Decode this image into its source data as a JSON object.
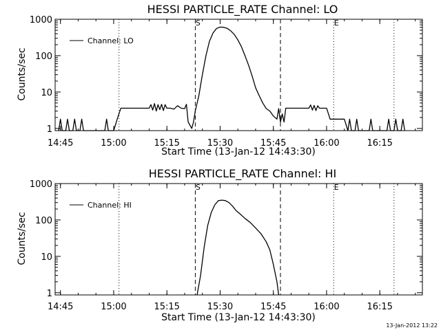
{
  "footer": {
    "timestamp": "13-Jan-2012 13:22"
  },
  "chart_data": [
    {
      "type": "line",
      "title": "HESSI PARTICLE_RATE Channel: LO",
      "xlabel": "Start Time (13-Jan-12 14:43:30)",
      "ylabel": "Counts/sec",
      "xlim": [
        "14:43:30",
        "16:27:00"
      ],
      "ylim": [
        0.87,
        1000
      ],
      "yscale": "log",
      "x_ticks": [
        "14:45",
        "15:00",
        "15:15",
        "15:30",
        "15:45",
        "16:00",
        "16:15"
      ],
      "y_ticks": [
        "1",
        "10",
        "100",
        "1000"
      ],
      "legend": {
        "position": "top-left"
      },
      "markers": [
        {
          "label": "",
          "time": "14:43:30",
          "style": "dotted"
        },
        {
          "label": "S",
          "time": "15:23:00",
          "style": "dashed"
        },
        {
          "label": "",
          "time": "15:01:30",
          "style": "dotted"
        },
        {
          "label": "",
          "time": "15:47:00",
          "style": "dashed"
        },
        {
          "label": "E",
          "time": "16:02:00",
          "style": "dotted"
        },
        {
          "label": "",
          "time": "16:19:00",
          "style": "dotted"
        }
      ],
      "series": [
        {
          "name": "Channel: LO",
          "x": [
            "14:44:30",
            "14:45:00",
            "14:45:30",
            "14:46:30",
            "14:47:00",
            "14:47:30",
            "14:48:30",
            "14:49:00",
            "14:49:30",
            "14:50:30",
            "14:51:00",
            "14:51:30",
            "14:52:00",
            "14:57:30",
            "14:58:00",
            "14:58:30",
            "15:00:00",
            "15:01:00",
            "15:02:00",
            "15:10:00",
            "15:10:30",
            "15:11:00",
            "15:11:30",
            "15:12:00",
            "15:12:30",
            "15:13:00",
            "15:13:30",
            "15:14:00",
            "15:14:30",
            "15:15:00",
            "15:15:30",
            "15:16:00",
            "15:17:00",
            "15:18:00",
            "15:19:00",
            "15:20:00",
            "15:20:30",
            "15:21:00",
            "15:22:00",
            "15:22:30",
            "15:23:00",
            "15:24:00",
            "15:25:00",
            "15:26:00",
            "15:27:00",
            "15:28:00",
            "15:29:00",
            "15:30:00",
            "15:31:00",
            "15:32:00",
            "15:33:00",
            "15:34:00",
            "15:35:00",
            "15:36:00",
            "15:37:00",
            "15:38:00",
            "15:39:00",
            "15:40:00",
            "15:41:00",
            "15:42:00",
            "15:43:00",
            "15:44:00",
            "15:45:00",
            "15:46:00",
            "15:46:30",
            "15:47:00",
            "15:47:30",
            "15:48:00",
            "15:48:30",
            "15:49:00",
            "15:50:00",
            "15:55:00",
            "15:55:30",
            "15:56:00",
            "15:56:30",
            "15:57:00",
            "15:57:30",
            "15:58:00",
            "15:59:00",
            "16:00:00",
            "16:01:00",
            "16:02:00",
            "16:03:00",
            "16:05:00",
            "16:06:00",
            "16:06:30",
            "16:07:00",
            "16:08:00",
            "16:08:30",
            "16:09:00",
            "16:12:00",
            "16:12:30",
            "16:13:00",
            "16:17:00",
            "16:17:30",
            "16:18:00",
            "16:19:00",
            "16:19:30",
            "16:20:00",
            "16:21:00",
            "16:21:30",
            "16:22:00"
          ],
          "y": [
            0.87,
            1.8,
            0.87,
            0.87,
            1.8,
            0.87,
            0.87,
            1.8,
            0.87,
            0.87,
            1.8,
            0.87,
            0.87,
            0.87,
            1.8,
            0.87,
            0.87,
            1.8,
            3.6,
            3.6,
            4.5,
            3.2,
            4.8,
            3.0,
            4.5,
            3.3,
            4.6,
            3.1,
            4.5,
            3.6,
            3.6,
            3.6,
            3.4,
            4.2,
            3.6,
            3.5,
            4.6,
            1.5,
            1.0,
            1.5,
            3.0,
            8,
            30,
            100,
            250,
            420,
            560,
            610,
            600,
            560,
            480,
            380,
            270,
            175,
            100,
            55,
            28,
            13,
            8,
            5,
            3.5,
            3.0,
            2.2,
            1.8,
            3.5,
            1.5,
            2.5,
            1.5,
            3.6,
            3.6,
            3.6,
            3.6,
            4.4,
            3.2,
            4.3,
            3.1,
            4.2,
            3.6,
            3.6,
            3.6,
            1.8,
            1.8,
            1.8,
            1.8,
            0.87,
            1.8,
            0.87,
            0.87,
            1.8,
            0.87,
            0.87,
            1.8,
            0.87,
            0.87,
            1.8,
            0.87,
            0.87,
            1.8,
            0.87,
            0.87,
            1.8,
            0.87
          ]
        }
      ]
    },
    {
      "type": "line",
      "title": "HESSI PARTICLE_RATE Channel: HI",
      "xlabel": "Start Time (13-Jan-12 14:43:30)",
      "ylabel": "Counts/sec",
      "xlim": [
        "14:43:30",
        "16:27:00"
      ],
      "ylim": [
        0.87,
        1000
      ],
      "yscale": "log",
      "x_ticks": [
        "14:45",
        "15:00",
        "15:15",
        "15:30",
        "15:45",
        "16:00",
        "16:15"
      ],
      "y_ticks": [
        "1",
        "10",
        "100",
        "1000"
      ],
      "legend": {
        "position": "top-left"
      },
      "markers": [
        {
          "label": "",
          "time": "14:43:30",
          "style": "dotted"
        },
        {
          "label": "S",
          "time": "15:23:00",
          "style": "dashed"
        },
        {
          "label": "",
          "time": "15:01:30",
          "style": "dotted"
        },
        {
          "label": "",
          "time": "15:47:00",
          "style": "dashed"
        },
        {
          "label": "E",
          "time": "16:02:00",
          "style": "dotted"
        },
        {
          "label": "",
          "time": "16:19:00",
          "style": "dotted"
        }
      ],
      "series": [
        {
          "name": "Channel: HI",
          "x": [
            "15:23:30",
            "15:24:30",
            "15:25:30",
            "15:26:30",
            "15:27:30",
            "15:28:30",
            "15:29:30",
            "15:30:30",
            "15:31:30",
            "15:32:30",
            "15:33:30",
            "15:34:30",
            "15:35:30",
            "15:37:00",
            "15:38:30",
            "15:40:00",
            "15:41:30",
            "15:43:00",
            "15:44:00",
            "15:45:00",
            "15:46:00",
            "15:46:30"
          ],
          "y": [
            0.87,
            3,
            18,
            70,
            160,
            260,
            340,
            350,
            340,
            300,
            240,
            180,
            150,
            110,
            85,
            60,
            42,
            25,
            15,
            6,
            2,
            0.87
          ]
        }
      ]
    }
  ]
}
